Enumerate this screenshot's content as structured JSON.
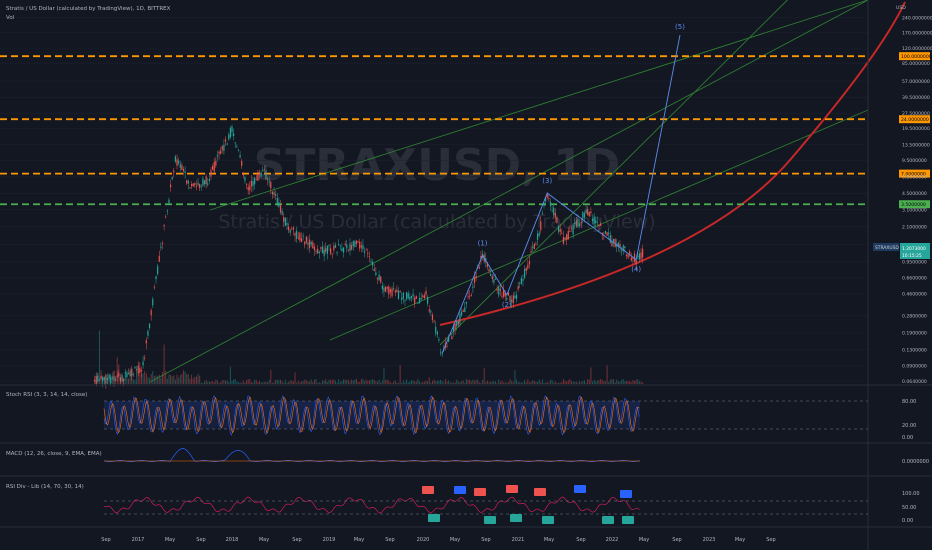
{
  "header": {
    "title": "Stratis / US Dollar (calculated by TradingView), 1D, BITTREX",
    "volume_label": "Vol"
  },
  "watermark": {
    "symbol": "STRAXUSD, 1D",
    "name": "Stratis / US Dollar (calculated by TradingView)"
  },
  "colors": {
    "background": "#131722",
    "candle_up": "#26a69a",
    "candle_down": "#ef5350",
    "level_orange": "#ff9800",
    "level_green": "#4caf50",
    "support_curve": "#c62828",
    "channel_green": "#2e7d32",
    "wave_line": "#5b8def",
    "rsi_line": "#e91e63",
    "macd_line": "#2962ff"
  },
  "price_axis": {
    "currency": "USD",
    "ticks": [
      "240.0000000",
      "170.0000000",
      "120.0000000",
      "85.0000000",
      "57.0000000",
      "39.5000000",
      "27.5000000",
      "19.5000000",
      "13.5000000",
      "9.5000000",
      "6.5000000",
      "4.5000000",
      "3.1000000",
      "2.1000000",
      "1.4000000",
      "0.9500000",
      "0.6600000",
      "0.4600000",
      "0.2800000",
      "0.1900000",
      "0.1300000",
      "0.0900000",
      "0.0640000"
    ],
    "highlight_labels": [
      {
        "text": "100.0000000",
        "color": "#ff9800"
      },
      {
        "text": "24.0000000",
        "color": "#ff9800"
      },
      {
        "text": "7.0000000",
        "color": "#ff9800"
      },
      {
        "text": "3.5000000",
        "color": "#4caf50"
      }
    ],
    "symbol_tag": "STRAXUSD",
    "last_price": "1.2073000",
    "countdown": "10:15:25"
  },
  "time_axis": {
    "labels": [
      "Sep",
      "2017",
      "May",
      "Sep",
      "2018",
      "May",
      "Sep",
      "2019",
      "May",
      "Sep",
      "2020",
      "May",
      "Sep",
      "2021",
      "May",
      "Sep",
      "2022",
      "May",
      "Sep",
      "2023",
      "May",
      "Sep"
    ]
  },
  "wave_labels": [
    "(1)",
    "(2)",
    "(3)",
    "(4)",
    "(5)"
  ],
  "stoch_rsi": {
    "label": "Stoch RSI (3, 3, 14, 14, close)",
    "ticks": [
      "80.00",
      "20.00",
      "0.00"
    ]
  },
  "macd": {
    "label": "MACD (12, 26, close, 9, EMA, EMA)",
    "ticks": [
      "0.0000000"
    ]
  },
  "rsi_div": {
    "label": "RSI Div - Lib (14, 70, 30, 14)",
    "ticks": [
      "100.00",
      "50.00",
      "0.00"
    ]
  },
  "chart_data": {
    "type": "candlestick",
    "title": "STRAXUSD, 1D",
    "scale": "log",
    "y_range": [
      0.06,
      240
    ],
    "key_levels": [
      100,
      24,
      7,
      3.5
    ],
    "price_path": [
      {
        "date": "2016-08",
        "price": 0.065
      },
      {
        "date": "2016-12",
        "price": 0.07
      },
      {
        "date": "2017-02",
        "price": 0.09
      },
      {
        "date": "2017-04",
        "price": 1.0
      },
      {
        "date": "2017-06",
        "price": 10.0
      },
      {
        "date": "2017-08",
        "price": 5.0
      },
      {
        "date": "2017-10",
        "price": 6.0
      },
      {
        "date": "2018-01",
        "price": 19.0
      },
      {
        "date": "2018-03",
        "price": 5.0
      },
      {
        "date": "2018-05",
        "price": 7.5
      },
      {
        "date": "2018-08",
        "price": 2.0
      },
      {
        "date": "2018-12",
        "price": 1.2
      },
      {
        "date": "2019-05",
        "price": 1.4
      },
      {
        "date": "2019-08",
        "price": 0.5
      },
      {
        "date": "2019-12",
        "price": 0.4
      },
      {
        "date": "2020-01",
        "price": 0.45
      },
      {
        "date": "2020-03",
        "price": 0.12
      },
      {
        "date": "2020-06",
        "price": 0.35
      },
      {
        "date": "2020-08",
        "price": 1.1
      },
      {
        "date": "2020-10",
        "price": 0.5
      },
      {
        "date": "2020-12",
        "price": 0.4
      },
      {
        "date": "2021-03",
        "price": 1.8
      },
      {
        "date": "2021-04",
        "price": 4.5
      },
      {
        "date": "2021-06",
        "price": 1.5
      },
      {
        "date": "2021-09",
        "price": 3.0
      },
      {
        "date": "2021-12",
        "price": 1.5
      },
      {
        "date": "2022-03",
        "price": 1.0
      },
      {
        "date": "2022-04",
        "price": 1.2
      }
    ],
    "elliott_waves": [
      {
        "label": "(1)",
        "date": "2020-08",
        "price": 1.1
      },
      {
        "label": "(2)",
        "date": "2020-11",
        "price": 0.45
      },
      {
        "label": "(3)",
        "date": "2021-04",
        "price": 4.5
      },
      {
        "label": "(4)",
        "date": "2022-03",
        "price": 1.0
      },
      {
        "label": "(5)",
        "date": "2022-09",
        "price": 150
      }
    ],
    "last_price": 1.2073
  }
}
